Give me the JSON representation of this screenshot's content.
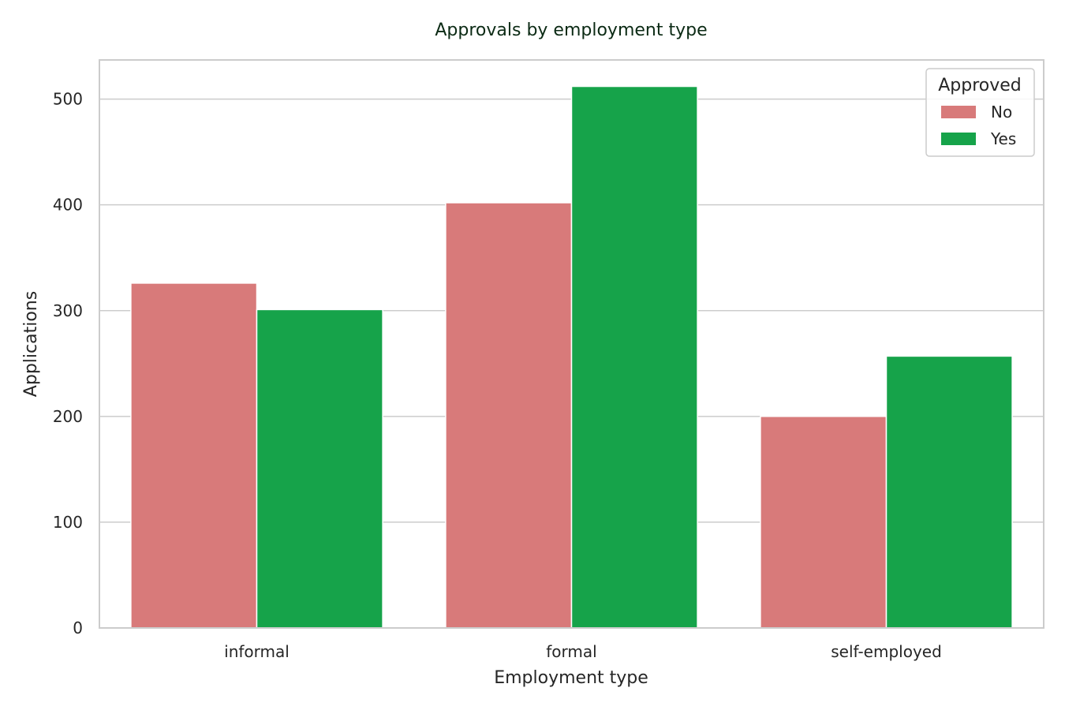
{
  "chart_data": {
    "type": "bar",
    "title": "Approvals by employment type",
    "xlabel": "Employment type",
    "ylabel": "Applications",
    "categories": [
      "informal",
      "formal",
      "self-employed"
    ],
    "series": [
      {
        "name": "No",
        "values": [
          326,
          402,
          200
        ],
        "color": "#d87a7a"
      },
      {
        "name": "Yes",
        "values": [
          301,
          512,
          257
        ],
        "color": "#16a34a"
      }
    ],
    "ylim": [
      0,
      537
    ],
    "yticks": [
      0,
      100,
      200,
      300,
      400,
      500
    ],
    "grid": true,
    "legend": {
      "title": "Approved",
      "placement": "top-right"
    }
  }
}
